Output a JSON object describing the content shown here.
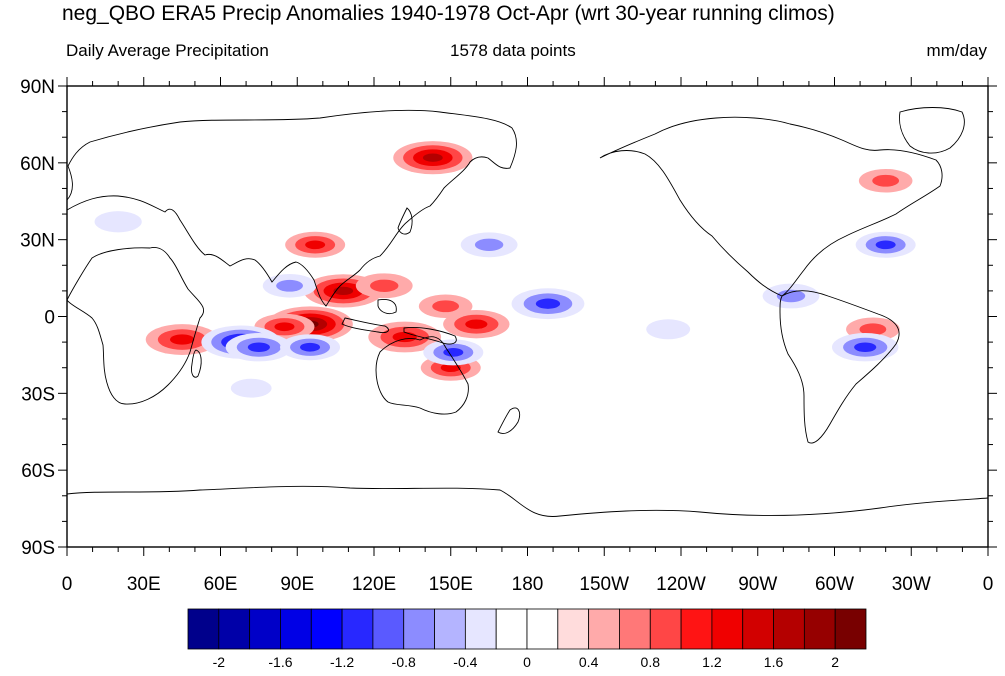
{
  "title": "neg_QBO ERA5 Precip Anomalies 1940-1978 Oct-Apr (wrt 30-year running climos)",
  "subtitle_left": "Daily Average Precipitation",
  "subtitle_center": "1578 data points",
  "subtitle_right": "mm/day",
  "lat_labels": [
    "90N",
    "60N",
    "30N",
    "0",
    "30S",
    "60S",
    "90S"
  ],
  "lon_labels": [
    "0",
    "30E",
    "60E",
    "90E",
    "120E",
    "150E",
    "180",
    "150W",
    "120W",
    "90W",
    "60W",
    "30W",
    "0"
  ],
  "colorbar": {
    "colors": [
      "#00008b",
      "#0000a8",
      "#0000c8",
      "#0000e6",
      "#0000ff",
      "#2828ff",
      "#5a5aff",
      "#8c8cff",
      "#b4b4ff",
      "#e6e6ff",
      "#ffffff",
      "#ffffff",
      "#ffdcdc",
      "#ffaaaa",
      "#ff7878",
      "#ff4646",
      "#ff1414",
      "#f00000",
      "#d20000",
      "#b40000",
      "#960000",
      "#780000"
    ],
    "labels": [
      "-2",
      "-1.6",
      "-1.2",
      "-0.8",
      "-0.4",
      "0",
      "0.4",
      "0.8",
      "1.2",
      "1.6",
      "2"
    ]
  },
  "anomalies": [
    {
      "lon": 95,
      "lat": -3,
      "value": 1.8
    },
    {
      "lon": 85,
      "lat": -4,
      "value": 1.0
    },
    {
      "lon": 132,
      "lat": -8,
      "value": 1.4
    },
    {
      "lon": 160,
      "lat": -3,
      "value": 1.2
    },
    {
      "lon": 148,
      "lat": 4,
      "value": 0.8
    },
    {
      "lon": 143,
      "lat": 62,
      "value": 1.6
    },
    {
      "lon": 108,
      "lat": 10,
      "value": 1.6
    },
    {
      "lon": 45,
      "lat": -9,
      "value": 1.4
    },
    {
      "lon": 97,
      "lat": 28,
      "value": 1.0
    },
    {
      "lon": 124,
      "lat": 12,
      "value": 0.9
    },
    {
      "lon": 150,
      "lat": -20,
      "value": 1.0
    },
    {
      "lon": 320,
      "lat": 53,
      "value": 0.8
    },
    {
      "lon": 315,
      "lat": -5,
      "value": 0.8
    },
    {
      "lon": 68,
      "lat": -10,
      "value": -1.6
    },
    {
      "lon": 75,
      "lat": -12,
      "value": -1.2
    },
    {
      "lon": 188,
      "lat": 5,
      "value": -1.4
    },
    {
      "lon": 165,
      "lat": 28,
      "value": -0.9
    },
    {
      "lon": 151,
      "lat": -14,
      "value": -1.0
    },
    {
      "lon": 95,
      "lat": -12,
      "value": -1.0
    },
    {
      "lon": 87,
      "lat": 12,
      "value": -0.8
    },
    {
      "lon": 320,
      "lat": 28,
      "value": -1.0
    },
    {
      "lon": 312,
      "lat": -12,
      "value": -1.2
    },
    {
      "lon": 283,
      "lat": 8,
      "value": -0.9
    },
    {
      "lon": 20,
      "lat": 37,
      "value": -0.6
    },
    {
      "lon": 235,
      "lat": -5,
      "value": -0.5
    },
    {
      "lon": 72,
      "lat": -28,
      "value": -0.4
    }
  ]
}
